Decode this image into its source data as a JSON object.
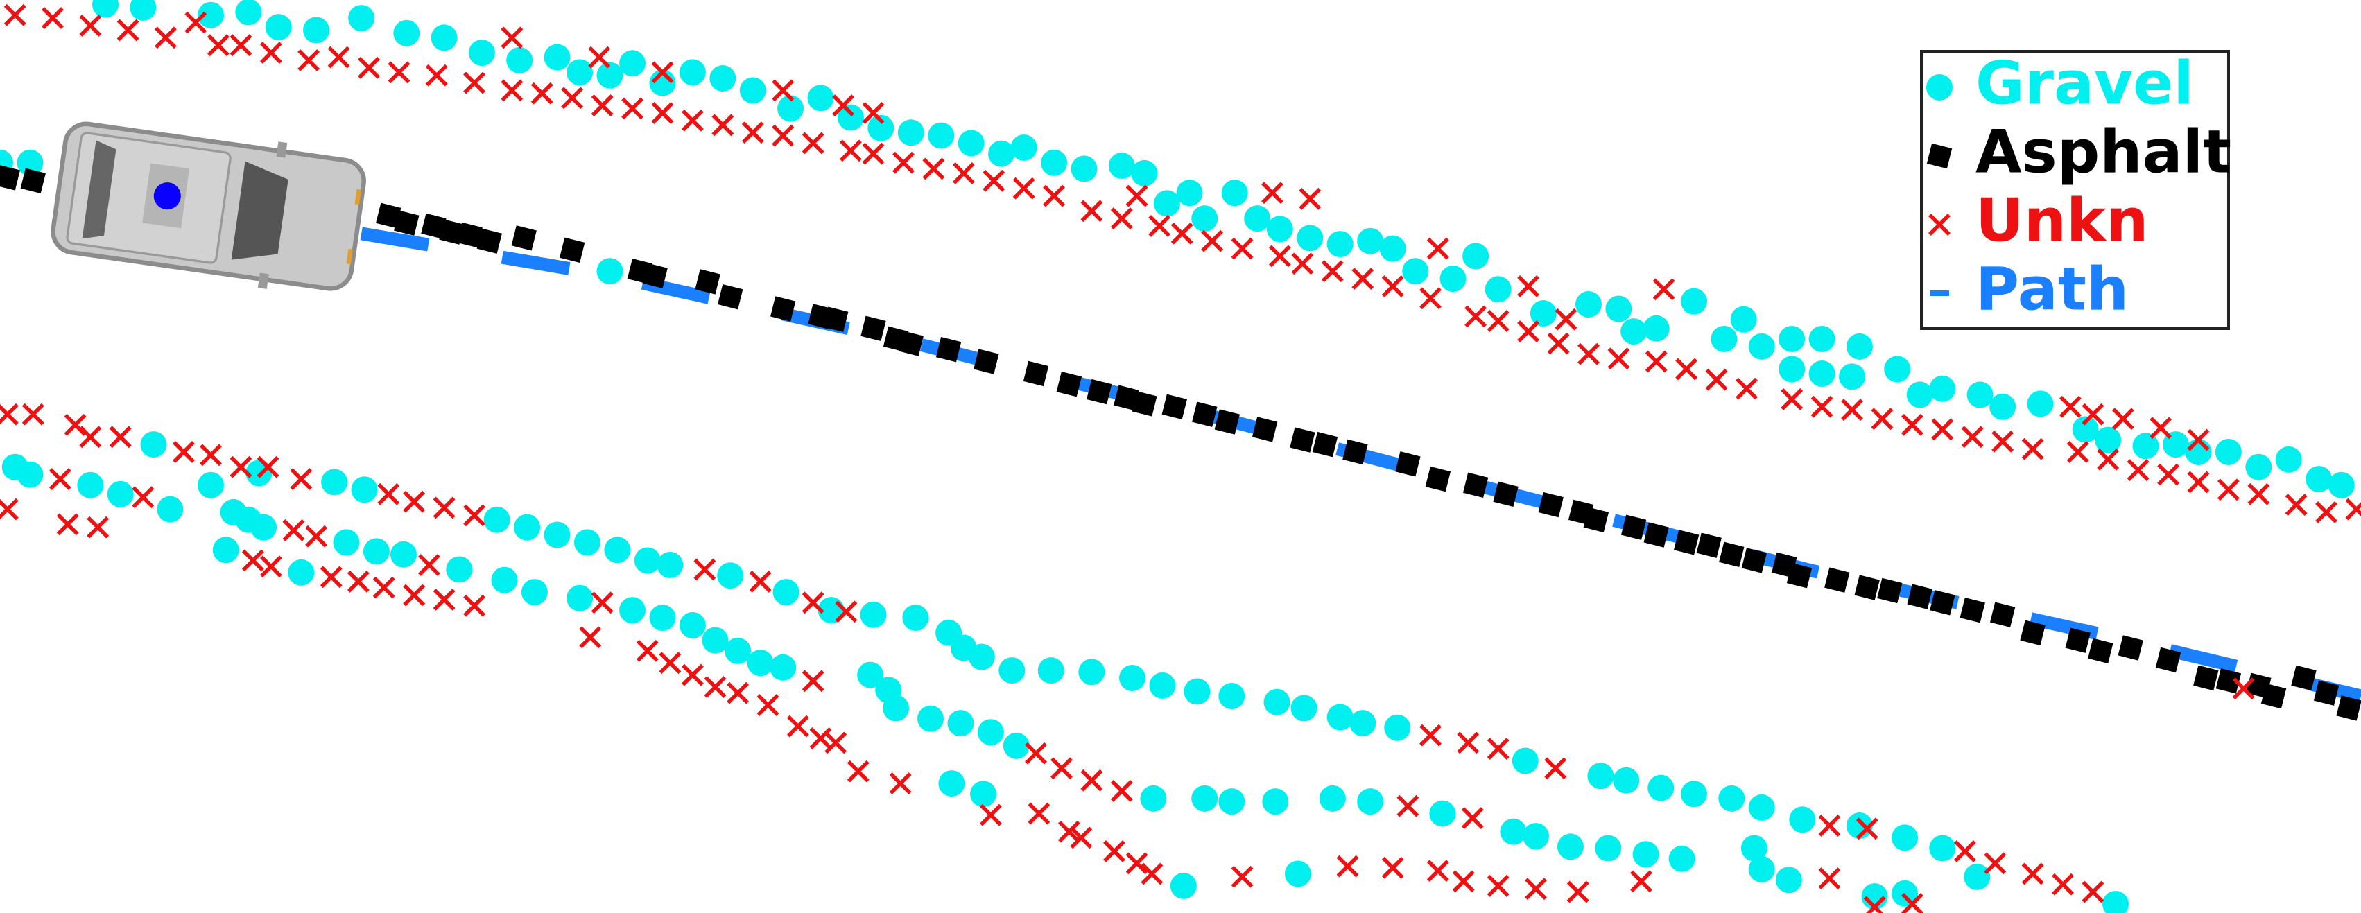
{
  "chart_data": {
    "type": "scatter",
    "legend": "upper right",
    "xlim": [
      0,
      1568
    ],
    "ylim": [
      606,
      0
    ],
    "series": [
      {
        "name": "Gravel",
        "color": "#00f0f0",
        "marker": "circle",
        "x": [
          0,
          20,
          70,
          95,
          140,
          165,
          185,
          210,
          240,
          270,
          295,
          320,
          345,
          370,
          385,
          405,
          420,
          440,
          460,
          480,
          500,
          525,
          545,
          565,
          585,
          605,
          625,
          645,
          665,
          680,
          700,
          720,
          745,
          760,
          775,
          790,
          800,
          820,
          835,
          850,
          870,
          890,
          910,
          925,
          940,
          965,
          980,
          995,
          1025,
          1055,
          1075,
          1085,
          1100,
          1125,
          1145,
          1158,
          1170,
          1190,
          1210,
          1235,
          1190,
          1210,
          1230,
          1260,
          1275,
          1290,
          1315,
          1330,
          1355,
          1385,
          1400,
          1425,
          1445,
          1460,
          1480,
          1500,
          1520,
          1540,
          1555,
          405,
          10,
          20,
          60,
          80,
          102,
          113,
          140,
          155,
          165,
          175,
          150,
          172,
          200,
          222,
          242,
          230,
          250,
          268,
          305,
          330,
          350,
          370,
          390,
          410,
          430,
          445,
          485,
          522,
          552,
          580,
          608,
          630,
          640,
          652,
          672,
          698,
          725,
          752,
          772,
          795,
          818,
          848,
          866,
          890,
          905,
          928,
          1013,
          1063,
          1080,
          1103,
          1125,
          1150,
          1170,
          1197,
          1235,
          1265,
          1290,
          1313,
          1405,
          335,
          355,
          385,
          420,
          440,
          460,
          475,
          490,
          505,
          520,
          578,
          590,
          595,
          618,
          638,
          658,
          675,
          632,
          653,
          766,
          800,
          818,
          847,
          885,
          910,
          958,
          1005,
          1020,
          1043,
          1068,
          1093,
          1117,
          1165,
          1170,
          1188,
          1245,
          1265,
          786,
          862
        ],
        "values": [
          108,
          108,
          3,
          5,
          10,
          8,
          18,
          20,
          12,
          22,
          25,
          35,
          40,
          38,
          48,
          50,
          42,
          55,
          48,
          52,
          60,
          72,
          65,
          78,
          85,
          88,
          90,
          95,
          102,
          98,
          108,
          112,
          110,
          115,
          135,
          128,
          145,
          128,
          145,
          152,
          158,
          162,
          160,
          165,
          180,
          185,
          170,
          192,
          208,
          202,
          205,
          220,
          218,
          200,
          225,
          212,
          230,
          225,
          225,
          230,
          245,
          248,
          250,
          245,
          262,
          258,
          262,
          270,
          268,
          285,
          292,
          296,
          295,
          300,
          300,
          310,
          305,
          318,
          322,
          180,
          310,
          315,
          322,
          328,
          295,
          338,
          322,
          340,
          345,
          350,
          365,
          314,
          380,
          320,
          325,
          360,
          366,
          368,
          378,
          345,
          350,
          355,
          360,
          365,
          372,
          375,
          382,
          393,
          405,
          408,
          410,
          420,
          430,
          436,
          445,
          445,
          446,
          450,
          455,
          459,
          462,
          466,
          470,
          476,
          480,
          483,
          505,
          515,
          518,
          523,
          527,
          530,
          536,
          544,
          548,
          556,
          563,
          582,
          600,
          385,
          393,
          397,
          405,
          410,
          415,
          425,
          432,
          440,
          443,
          448,
          458,
          470,
          477,
          480,
          486,
          495,
          520,
          527,
          530,
          530,
          532,
          532,
          530,
          532,
          540,
          552,
          555,
          562,
          563,
          567,
          570,
          563,
          577,
          584,
          595,
          593,
          588,
          580
        ]
      },
      {
        "name": "Asphalt",
        "color": "#000000",
        "marker": "square",
        "x": [
          5,
          22,
          258,
          270,
          288,
          300,
          312,
          325,
          348,
          380,
          425,
          435,
          470,
          485,
          520,
          545,
          555,
          580,
          595,
          605,
          630,
          655,
          688,
          710,
          730,
          748,
          760,
          780,
          800,
          815,
          840,
          865,
          880,
          900,
          935,
          955,
          980,
          1000,
          1030,
          1050,
          1060,
          1085,
          1100,
          1120,
          1135,
          1150,
          1165,
          1185,
          1195,
          1220,
          1240,
          1255,
          1275,
          1290,
          1310,
          1330,
          1350,
          1380,
          1395,
          1415,
          1440,
          1465,
          1480,
          1500,
          1510,
          1530,
          1545,
          1560
        ],
        "values": [
          118,
          120,
          143,
          148,
          150,
          154,
          156,
          160,
          158,
          166,
          180,
          183,
          187,
          197,
          205,
          210,
          212,
          218,
          225,
          228,
          232,
          240,
          248,
          255,
          260,
          264,
          268,
          270,
          275,
          280,
          285,
          292,
          295,
          300,
          308,
          318,
          322,
          328,
          335,
          340,
          345,
          350,
          355,
          360,
          362,
          368,
          372,
          375,
          382,
          385,
          390,
          392,
          396,
          400,
          405,
          408,
          420,
          425,
          432,
          430,
          438,
          450,
          452,
          455,
          462,
          450,
          460,
          470
        ]
      },
      {
        "name": "Unkn",
        "color": "#ee1111",
        "marker": "x",
        "x": [
          10,
          35,
          60,
          85,
          110,
          130,
          145,
          160,
          180,
          205,
          225,
          245,
          265,
          290,
          315,
          340,
          340,
          360,
          380,
          398,
          400,
          420,
          440,
          440,
          460,
          480,
          500,
          520,
          520,
          540,
          560,
          565,
          580,
          580,
          600,
          620,
          640,
          660,
          680,
          700,
          725,
          745,
          755,
          770,
          785,
          805,
          825,
          845,
          850,
          870,
          865,
          885,
          905,
          925,
          950,
          955,
          980,
          995,
          1015,
          1015,
          1040,
          1035,
          1055,
          1075,
          1100,
          1105,
          1120,
          1140,
          1160,
          1190,
          1210,
          1230,
          1250,
          1270,
          1290,
          1310,
          1330,
          1350,
          1375,
          1390,
          1380,
          1400,
          1420,
          1440,
          1460,
          1480,
          1500,
          1525,
          1545,
          1565,
          1410,
          1435,
          1460,
          5,
          22,
          50,
          60,
          80,
          40,
          5,
          45,
          65,
          95,
          122,
          140,
          160,
          178,
          200,
          258,
          275,
          295,
          315,
          195,
          210,
          168,
          180,
          220,
          238,
          255,
          275,
          295,
          315,
          285,
          400,
          392,
          430,
          445,
          460,
          475,
          490,
          510,
          530,
          545,
          555,
          540,
          468,
          505,
          540,
          562,
          570,
          598,
          658,
          688,
          705,
          725,
          745,
          690,
          710,
          718,
          740,
          755,
          765,
          825,
          895,
          925,
          955,
          972,
          995,
          1020,
          1048,
          1090,
          950,
          975,
          995,
          1033,
          935,
          978,
          1215,
          1240,
          1215,
          1270,
          1305,
          1325,
          1350,
          1370,
          1390,
          1245,
          1490
        ],
        "values": [
          10,
          12,
          17,
          20,
          25,
          15,
          30,
          30,
          35,
          40,
          38,
          45,
          48,
          50,
          55,
          25,
          60,
          62,
          65,
          38,
          70,
          72,
          48,
          75,
          80,
          83,
          88,
          60,
          90,
          95,
          70,
          100,
          75,
          102,
          108,
          112,
          115,
          120,
          125,
          130,
          140,
          145,
          130,
          150,
          155,
          160,
          165,
          128,
          170,
          132,
          175,
          180,
          185,
          190,
          198,
          165,
          210,
          213,
          190,
          220,
          212,
          228,
          235,
          238,
          240,
          192,
          245,
          252,
          258,
          265,
          270,
          272,
          278,
          282,
          285,
          290,
          293,
          298,
          270,
          275,
          300,
          305,
          312,
          315,
          320,
          325,
          328,
          335,
          340,
          338,
          278,
          284,
          292,
          275,
          275,
          282,
          290,
          290,
          318,
          338,
          348,
          350,
          330,
          300,
          302,
          310,
          310,
          318,
          328,
          333,
          337,
          342,
          352,
          356,
          372,
          376,
          383,
          386,
          390,
          395,
          398,
          402,
          375,
          400,
          423,
          432,
          440,
          448,
          456,
          460,
          468,
          482,
          490,
          493,
          452,
          378,
          386,
          400,
          406,
          512,
          520,
          541,
          500,
          510,
          518,
          525,
          540,
          552,
          556,
          565,
          573,
          580,
          582,
          575,
          576,
          578,
          585,
          588,
          590,
          592,
          585,
          488,
          493,
          497,
          510,
          535,
          543,
          548,
          550,
          583,
          600,
          565,
          573,
          580,
          587,
          592,
          602,
          457
        ]
      },
      {
        "name": "Path",
        "color": "#1a80ff",
        "marker": "dash",
        "x": [
          240,
          400,
          600,
          800,
          1000,
          1200,
          1400,
          1568
        ],
        "values": [
          155,
          182,
          226,
          275,
          327,
          378,
          422,
          462
        ]
      }
    ]
  }
}
